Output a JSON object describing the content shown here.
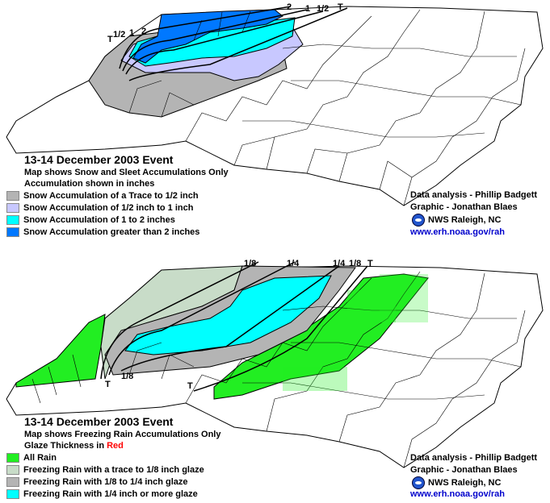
{
  "snow_map": {
    "title": "13-14 December 2003 Event",
    "subtitle": "Map shows Snow and Sleet Accumulations Only",
    "units": "Accumulation shown in inches",
    "legend": [
      {
        "label": "Snow Accumulation of a Trace to 1/2 inch",
        "color": "#b4b4b4"
      },
      {
        "label": "Snow Accumulation of 1/2 inch to 1 inch",
        "color": "#c8c8ff"
      },
      {
        "label": "Snow Accumulation of 1 to 2 inches",
        "color": "#00ffff"
      },
      {
        "label": "Snow Accumulation greater than 2 inches",
        "color": "#0078ff"
      }
    ],
    "contour_labels": [
      "2",
      "1",
      "1/2",
      "T",
      "1/2",
      "1",
      "2",
      "T"
    ],
    "credits": {
      "analysis": "Data analysis - Phillip Badgett",
      "graphic": "Graphic - Jonathan Blaes",
      "office": "NWS Raleigh, NC",
      "url": "www.erh.noaa.gov/rah"
    }
  },
  "ice_map": {
    "title": "13-14 December 2003 Event",
    "subtitle": "Map shows Freezing Rain Accumulations Only",
    "units_prefix": "Glaze Thickness in ",
    "units_highlight": "Red",
    "legend": [
      {
        "label": "All Rain",
        "color": "#22ee22"
      },
      {
        "label": "Freezing Rain with a trace to 1/8 inch glaze",
        "color": "#c8dcc8"
      },
      {
        "label": "Freezing Rain with 1/8 to 1/4 inch glaze",
        "color": "#b4b4b4"
      },
      {
        "label": "Freezing Rain with 1/4 inch or more glaze",
        "color": "#00ffff"
      }
    ],
    "contour_labels": [
      "1/8",
      "1/4",
      "1/4",
      "1/8",
      "T",
      "T",
      "1/8",
      "T"
    ],
    "credits": {
      "analysis": "Data analysis - Phillip Badgett",
      "graphic": "Graphic - Jonathan Blaes",
      "office": "NWS Raleigh, NC",
      "url": "www.erh.noaa.gov/rah"
    }
  },
  "colors": {
    "county_line": "#000000",
    "glaze_text": "#ff0000"
  }
}
